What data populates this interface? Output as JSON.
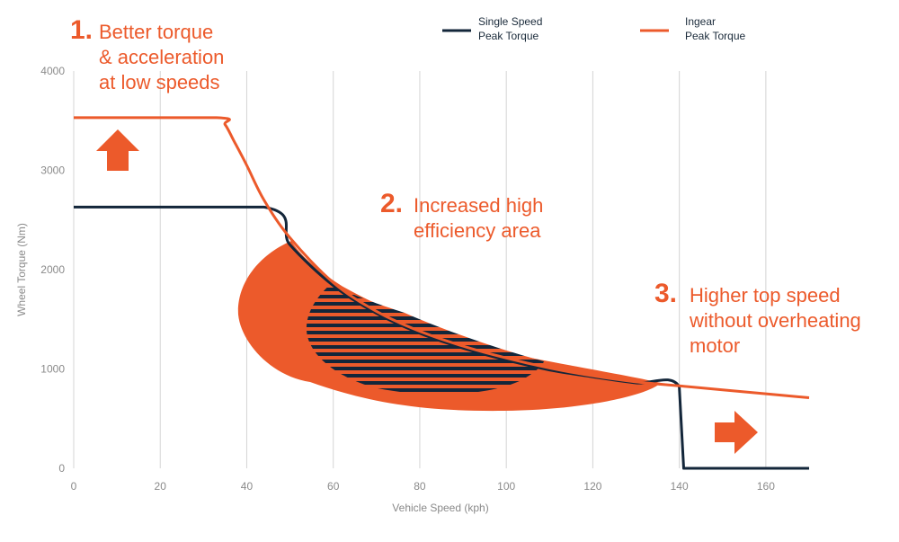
{
  "chart_data": {
    "type": "line",
    "title": "",
    "xlabel": "Vehicle Speed (kph)",
    "ylabel": "Wheel Torque (Nm)",
    "xlim": [
      0,
      170
    ],
    "ylim": [
      0,
      4000
    ],
    "x_ticks": [
      "0",
      "20",
      "40",
      "60",
      "80",
      "100",
      "120",
      "140",
      "160"
    ],
    "y_ticks": [
      "0",
      "1000",
      "2000",
      "3000",
      "4000"
    ],
    "grid": "vertical",
    "legend": {
      "position": "top-right",
      "entries": [
        {
          "name_line1": "Single Speed",
          "name_line2": "Peak Torque",
          "color": "#13263a"
        },
        {
          "name_line1": "Ingear",
          "name_line2": "Peak Torque",
          "color": "#ec5a2b"
        }
      ]
    },
    "series": [
      {
        "name": "Ingear Peak Torque",
        "color": "#ec5a2b",
        "points": [
          [
            0,
            3530
          ],
          [
            33,
            3530
          ],
          [
            35,
            3460
          ],
          [
            37,
            3300
          ],
          [
            40,
            3050
          ],
          [
            44,
            2700
          ],
          [
            50,
            2320
          ],
          [
            60,
            1870
          ],
          [
            70,
            1580
          ],
          [
            80,
            1380
          ],
          [
            90,
            1230
          ],
          [
            100,
            1110
          ],
          [
            110,
            1010
          ],
          [
            120,
            930
          ],
          [
            130,
            870
          ],
          [
            140,
            830
          ],
          [
            150,
            790
          ],
          [
            160,
            750
          ],
          [
            170,
            710
          ]
        ]
      },
      {
        "name": "Single Speed Peak Torque",
        "color": "#13263a",
        "points": [
          [
            0,
            2630
          ],
          [
            44,
            2630
          ],
          [
            50,
            2250
          ],
          [
            60,
            1840
          ],
          [
            70,
            1560
          ],
          [
            80,
            1360
          ],
          [
            90,
            1210
          ],
          [
            100,
            1090
          ],
          [
            110,
            990
          ],
          [
            120,
            920
          ],
          [
            130,
            860
          ],
          [
            140,
            820
          ],
          [
            141,
            0
          ],
          [
            170,
            0
          ]
        ]
      }
    ],
    "annotations": [
      {
        "number": "1.",
        "lines": [
          "Better torque",
          "& acceleration",
          "at low speeds"
        ]
      },
      {
        "number": "2.",
        "lines": [
          "Increased high",
          "efficiency area"
        ]
      },
      {
        "number": "3.",
        "lines": [
          "Higher top speed",
          "without overheating",
          "motor"
        ]
      }
    ]
  }
}
